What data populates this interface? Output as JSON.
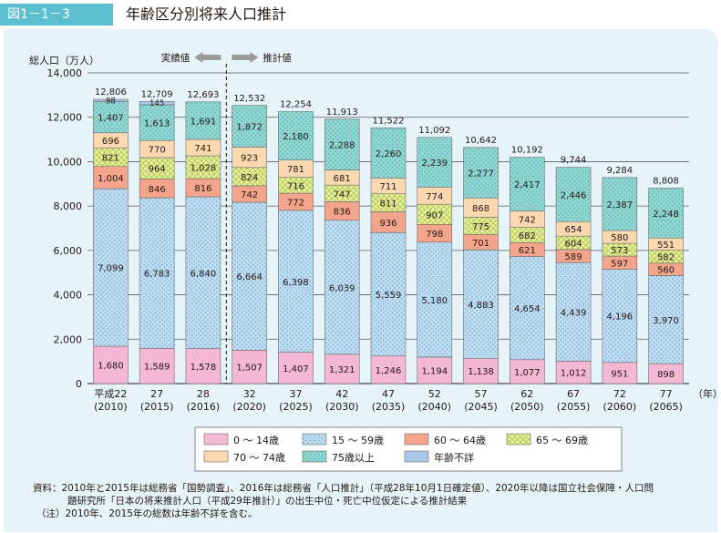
{
  "figure": {
    "number": "図1－1－3",
    "title": "年齢区分別将来人口推計"
  },
  "chart_data": {
    "type": "bar",
    "stacked": true,
    "ylabel": "総人口（万人）",
    "xlabel": "（年）",
    "ylim": [
      0,
      14000
    ],
    "yticks": [
      "0",
      "2,000",
      "4,000",
      "6,000",
      "8,000",
      "10,000",
      "12,000",
      "14,000"
    ],
    "grid": true,
    "legend_position": "bottom-center",
    "divider_labels": {
      "actual": "実績値",
      "projected": "推計値"
    },
    "categories": [
      {
        "label": "平成22",
        "sub": "(2010)"
      },
      {
        "label": "27",
        "sub": "(2015)"
      },
      {
        "label": "28",
        "sub": "(2016)"
      },
      {
        "label": "32",
        "sub": "(2020)"
      },
      {
        "label": "37",
        "sub": "(2025)"
      },
      {
        "label": "42",
        "sub": "(2030)"
      },
      {
        "label": "47",
        "sub": "(2035)"
      },
      {
        "label": "52",
        "sub": "(2040)"
      },
      {
        "label": "57",
        "sub": "(2045)"
      },
      {
        "label": "62",
        "sub": "(2050)"
      },
      {
        "label": "67",
        "sub": "(2055)"
      },
      {
        "label": "72",
        "sub": "(2060)"
      },
      {
        "label": "77",
        "sub": "(2065)"
      }
    ],
    "totals": [
      12806,
      12709,
      12693,
      12532,
      12254,
      11913,
      11522,
      11092,
      10642,
      10192,
      9744,
      9284,
      8808
    ],
    "series": [
      {
        "name": "0 ～ 14歳",
        "color": "#f4b8d2",
        "pattern": "solid",
        "values": [
          1680,
          1589,
          1578,
          1507,
          1407,
          1321,
          1246,
          1194,
          1138,
          1077,
          1012,
          951,
          898
        ]
      },
      {
        "name": "15 ～ 59歳",
        "color": "#bfdcf3",
        "pattern": "dots",
        "values": [
          7099,
          6783,
          6840,
          6664,
          6398,
          6039,
          5559,
          5180,
          4883,
          4654,
          4439,
          4196,
          3970
        ]
      },
      {
        "name": "60 ～ 64歳",
        "color": "#f3a48b",
        "pattern": "solid",
        "values": [
          1004,
          846,
          816,
          742,
          772,
          836,
          936,
          798,
          701,
          621,
          589,
          597,
          560
        ]
      },
      {
        "name": "65 ～ 69歳",
        "color": "#e4ef9c",
        "pattern": "cross",
        "values": [
          821,
          964,
          1028,
          824,
          716,
          747,
          811,
          907,
          775,
          682,
          604,
          573,
          582
        ]
      },
      {
        "name": "70 ～ 74歳",
        "color": "#fbd8b0",
        "pattern": "solid",
        "values": [
          696,
          770,
          741,
          923,
          781,
          681,
          711,
          774,
          868,
          742,
          654,
          580,
          551
        ]
      },
      {
        "name": "75歳以上",
        "color": "#8fd7d0",
        "pattern": "dots",
        "values": [
          1407,
          1613,
          1691,
          1872,
          2180,
          2288,
          2260,
          2239,
          2277,
          2417,
          2446,
          2387,
          2248
        ]
      },
      {
        "name": "年齢不詳",
        "color": "#a9c7e8",
        "pattern": "solid",
        "values": [
          98,
          145,
          null,
          null,
          null,
          null,
          null,
          null,
          null,
          null,
          null,
          null,
          null
        ]
      }
    ]
  },
  "notes": [
    "資料：2010年と2015年は総務省「国勢調査」、2016年は総務省「人口推計」（平成28年10月1日確定値）、2020年以降は国立社会保障・人口問",
    "題研究所「日本の将来推計人口（平成29年推計）」の出生中位・死亡中位仮定による推計結果",
    "（注）2010年、2015年の総数は年齢不詳を含む。"
  ]
}
